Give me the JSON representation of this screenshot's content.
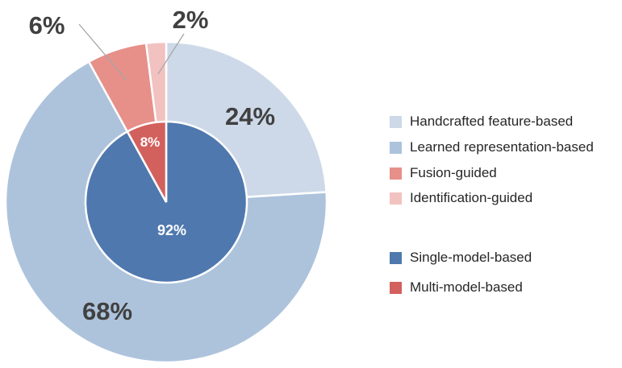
{
  "chart_data": {
    "type": "pie",
    "variant": "nested-donut",
    "outer_ring": {
      "slices": [
        {
          "name": "Handcrafted feature-based",
          "value": 24,
          "label": "24%",
          "color": "#cdd9e8"
        },
        {
          "name": "Learned representation-based",
          "value": 68,
          "label": "68%",
          "color": "#adc3dc"
        },
        {
          "name": "Fusion-guided",
          "value": 6,
          "label": "6%",
          "color": "#e78f89"
        },
        {
          "name": "Identification-guided",
          "value": 2,
          "label": "2%",
          "color": "#f2c2c0"
        }
      ]
    },
    "inner_pie": {
      "slices": [
        {
          "name": "Single-model-based",
          "value": 92,
          "label": "92%",
          "color": "#4f78ae"
        },
        {
          "name": "Multi-model-based",
          "value": 8,
          "label": "8%",
          "color": "#d2605d"
        }
      ]
    },
    "legend": {
      "placement": "right",
      "groups": [
        [
          "Handcrafted feature-based",
          "Learned representation-based",
          "Fusion-guided",
          "Identification-guided"
        ],
        [
          "Single-model-based",
          "Multi-model-based"
        ]
      ]
    }
  }
}
